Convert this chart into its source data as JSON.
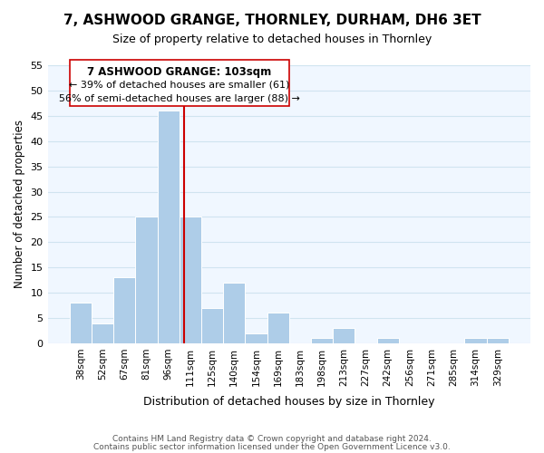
{
  "title": "7, ASHWOOD GRANGE, THORNLEY, DURHAM, DH6 3ET",
  "subtitle": "Size of property relative to detached houses in Thornley",
  "xlabel": "Distribution of detached houses by size in Thornley",
  "ylabel": "Number of detached properties",
  "bar_color": "#aecde8",
  "grid_color": "#d0e4f0",
  "background_color": "#f0f7ff",
  "bins": [
    "38sqm",
    "52sqm",
    "67sqm",
    "81sqm",
    "96sqm",
    "111sqm",
    "125sqm",
    "140sqm",
    "154sqm",
    "169sqm",
    "183sqm",
    "198sqm",
    "213sqm",
    "227sqm",
    "242sqm",
    "256sqm",
    "271sqm",
    "285sqm",
    "314sqm",
    "329sqm"
  ],
  "values": [
    8,
    4,
    13,
    25,
    46,
    25,
    7,
    12,
    2,
    6,
    0,
    1,
    3,
    0,
    1,
    0,
    0,
    0,
    1,
    1
  ],
  "ylim": [
    0,
    55
  ],
  "yticks": [
    0,
    5,
    10,
    15,
    20,
    25,
    30,
    35,
    40,
    45,
    50,
    55
  ],
  "vline_x": 4.72,
  "vline_color": "#cc0000",
  "annotation_title": "7 ASHWOOD GRANGE: 103sqm",
  "annotation_line1": "← 39% of detached houses are smaller (61)",
  "annotation_line2": "56% of semi-detached houses are larger (88) →",
  "footer1": "Contains HM Land Registry data © Crown copyright and database right 2024.",
  "footer2": "Contains public sector information licensed under the Open Government Licence v3.0."
}
